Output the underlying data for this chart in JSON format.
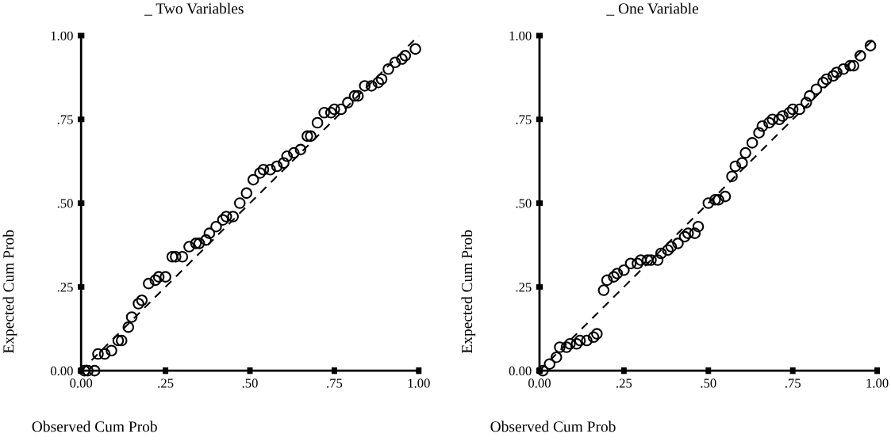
{
  "chart_data": [
    {
      "type": "scatter",
      "title": "_ Two Variables",
      "xlabel": "Observed Cum Prob",
      "ylabel": "Expected Cum Prob",
      "xlim": [
        0,
        1
      ],
      "ylim": [
        0,
        1
      ],
      "xticks": [
        {
          "value": 0,
          "label": "0.00"
        },
        {
          "value": 0.25,
          "label": ".25"
        },
        {
          "value": 0.5,
          "label": ".50"
        },
        {
          "value": 0.75,
          "label": ".75"
        },
        {
          "value": 1,
          "label": "1.00"
        }
      ],
      "yticks": [
        {
          "value": 0,
          "label": "0.00"
        },
        {
          "value": 0.25,
          "label": ".25"
        },
        {
          "value": 0.5,
          "label": ".50"
        },
        {
          "value": 0.75,
          "label": ".75"
        },
        {
          "value": 1,
          "label": "1.00"
        }
      ],
      "marker": "circle",
      "series": [
        {
          "type": "line",
          "color": "#000000",
          "line_style": "dashed",
          "marker": "none",
          "x": [
            0,
            1
          ],
          "values": [
            0,
            1
          ]
        },
        {
          "type": "scatter",
          "color": "#000000",
          "x": [
            0.01,
            0.02,
            0.04,
            0.05,
            0.07,
            0.09,
            0.11,
            0.12,
            0.14,
            0.15,
            0.17,
            0.18,
            0.2,
            0.22,
            0.23,
            0.25,
            0.27,
            0.28,
            0.3,
            0.32,
            0.34,
            0.35,
            0.37,
            0.38,
            0.4,
            0.42,
            0.43,
            0.45,
            0.47,
            0.49,
            0.51,
            0.53,
            0.54,
            0.56,
            0.58,
            0.6,
            0.61,
            0.63,
            0.65,
            0.67,
            0.68,
            0.7,
            0.72,
            0.74,
            0.75,
            0.77,
            0.79,
            0.81,
            0.82,
            0.84,
            0.86,
            0.88,
            0.89,
            0.91,
            0.93,
            0.95,
            0.96,
            0.99
          ],
          "values": [
            0.0,
            0.0,
            0.0,
            0.05,
            0.05,
            0.06,
            0.09,
            0.09,
            0.13,
            0.16,
            0.2,
            0.21,
            0.26,
            0.27,
            0.28,
            0.28,
            0.34,
            0.34,
            0.34,
            0.37,
            0.38,
            0.38,
            0.39,
            0.41,
            0.43,
            0.45,
            0.46,
            0.46,
            0.5,
            0.53,
            0.57,
            0.59,
            0.6,
            0.6,
            0.61,
            0.62,
            0.64,
            0.65,
            0.66,
            0.7,
            0.7,
            0.74,
            0.77,
            0.77,
            0.78,
            0.78,
            0.8,
            0.82,
            0.82,
            0.85,
            0.85,
            0.86,
            0.87,
            0.9,
            0.92,
            0.93,
            0.94,
            0.96
          ]
        }
      ]
    },
    {
      "type": "scatter",
      "title": "_ One Variable",
      "xlabel": "Observed Cum Prob",
      "ylabel": "Expected Cum Prob",
      "xlim": [
        0,
        1
      ],
      "ylim": [
        0,
        1
      ],
      "xticks": [
        {
          "value": 0,
          "label": "0.00"
        },
        {
          "value": 0.25,
          "label": ".25"
        },
        {
          "value": 0.5,
          "label": ".50"
        },
        {
          "value": 0.75,
          "label": ".75"
        },
        {
          "value": 1,
          "label": "1.00"
        }
      ],
      "yticks": [
        {
          "value": 0,
          "label": "0.00"
        },
        {
          "value": 0.25,
          "label": ".25"
        },
        {
          "value": 0.5,
          "label": ".50"
        },
        {
          "value": 0.75,
          "label": ".75"
        },
        {
          "value": 1,
          "label": "1.00"
        }
      ],
      "marker": "circle",
      "series": [
        {
          "type": "line",
          "color": "#000000",
          "line_style": "dashed",
          "marker": "none",
          "x": [
            0,
            1
          ],
          "values": [
            0,
            1
          ]
        },
        {
          "type": "scatter",
          "color": "#000000",
          "x": [
            0.01,
            0.03,
            0.05,
            0.06,
            0.08,
            0.09,
            0.11,
            0.12,
            0.14,
            0.16,
            0.17,
            0.19,
            0.2,
            0.22,
            0.23,
            0.25,
            0.27,
            0.29,
            0.3,
            0.32,
            0.33,
            0.35,
            0.36,
            0.38,
            0.39,
            0.41,
            0.43,
            0.44,
            0.46,
            0.47,
            0.5,
            0.52,
            0.53,
            0.55,
            0.57,
            0.58,
            0.6,
            0.61,
            0.63,
            0.65,
            0.66,
            0.68,
            0.69,
            0.71,
            0.72,
            0.74,
            0.75,
            0.77,
            0.79,
            0.8,
            0.82,
            0.84,
            0.85,
            0.87,
            0.88,
            0.9,
            0.92,
            0.93,
            0.95,
            0.98
          ],
          "values": [
            0.0,
            0.02,
            0.04,
            0.07,
            0.07,
            0.08,
            0.08,
            0.09,
            0.09,
            0.1,
            0.11,
            0.24,
            0.27,
            0.28,
            0.29,
            0.3,
            0.32,
            0.32,
            0.33,
            0.33,
            0.33,
            0.33,
            0.35,
            0.36,
            0.37,
            0.38,
            0.4,
            0.41,
            0.41,
            0.43,
            0.5,
            0.51,
            0.51,
            0.52,
            0.58,
            0.61,
            0.62,
            0.65,
            0.68,
            0.71,
            0.73,
            0.74,
            0.75,
            0.75,
            0.76,
            0.77,
            0.78,
            0.78,
            0.8,
            0.82,
            0.84,
            0.86,
            0.87,
            0.88,
            0.89,
            0.9,
            0.91,
            0.91,
            0.94,
            0.97
          ]
        }
      ]
    }
  ]
}
